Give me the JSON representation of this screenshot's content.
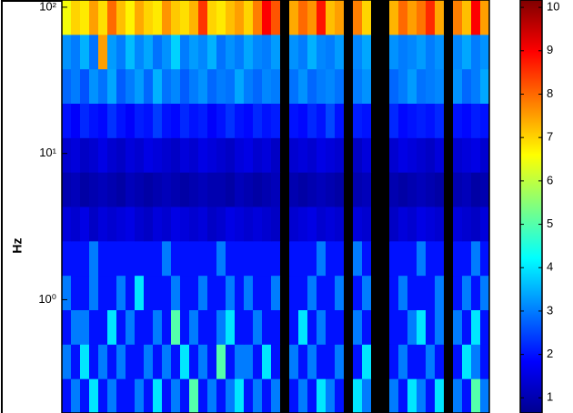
{
  "chart_data": {
    "type": "heatmap",
    "y_label": "Hz",
    "ylog": true,
    "ylim": [
      0.168,
      112
    ],
    "yticks": [
      {
        "value": 1,
        "label": "10⁰"
      },
      {
        "value": 10,
        "label": "10¹"
      },
      {
        "value": 100,
        "label": "10²"
      }
    ],
    "colormap": "jet",
    "clim": [
      0.65,
      10.17
    ],
    "cticks": [
      1,
      2,
      3,
      4,
      5,
      6,
      7,
      8,
      9,
      10
    ],
    "missing_color": "#000000",
    "z": [
      [
        2,
        3,
        2,
        4,
        2,
        3,
        2,
        2,
        3,
        2,
        4,
        2,
        3,
        2,
        5,
        2,
        3,
        2,
        3,
        4,
        2,
        3,
        2,
        3,
        null,
        2,
        3,
        2,
        4,
        3,
        2,
        null,
        4,
        3,
        null,
        null,
        3,
        2,
        4,
        3,
        2,
        4,
        null,
        3,
        2,
        5,
        3
      ],
      [
        3,
        2,
        4,
        2,
        3,
        2,
        3,
        2,
        2,
        3,
        2,
        3,
        2,
        4,
        2,
        3,
        2,
        5,
        2,
        3,
        3,
        2,
        4,
        2,
        null,
        3,
        2,
        3,
        2,
        2,
        3,
        null,
        2,
        4,
        null,
        null,
        2,
        3,
        2,
        2,
        3,
        2,
        null,
        2,
        4,
        3,
        2
      ],
      [
        2,
        3,
        3,
        2,
        2,
        4,
        2,
        3,
        2,
        2,
        3,
        2,
        5,
        2,
        3,
        2,
        2,
        3,
        4,
        2,
        2,
        3,
        2,
        2,
        null,
        2,
        4,
        2,
        3,
        2,
        2,
        null,
        3,
        2,
        null,
        null,
        2,
        2,
        3,
        4,
        2,
        3,
        null,
        3,
        2,
        4,
        2
      ],
      [
        3,
        2,
        2,
        3,
        2,
        2,
        3,
        2,
        4,
        2,
        2,
        2,
        3,
        2,
        2,
        3,
        2,
        2,
        3,
        2,
        3,
        2,
        2,
        3,
        null,
        2,
        2,
        3,
        2,
        2,
        3,
        null,
        2,
        3,
        null,
        null,
        2,
        3,
        2,
        2,
        2,
        3,
        null,
        2,
        3,
        2,
        3
      ],
      [
        2,
        2,
        2,
        3,
        2,
        2,
        2,
        2,
        2,
        2,
        2,
        3,
        2,
        2,
        2,
        2,
        2,
        3,
        2,
        2,
        2,
        2,
        2,
        2,
        null,
        2,
        2,
        2,
        3,
        2,
        2,
        null,
        3,
        2,
        null,
        null,
        2,
        2,
        2,
        3,
        2,
        2,
        null,
        2,
        2,
        3,
        2
      ],
      [
        1.5,
        1.4,
        1.6,
        1.3,
        1.5,
        1.4,
        1.5,
        1.6,
        1.4,
        1.3,
        1.5,
        1.4,
        1.6,
        1.5,
        1.4,
        1.5,
        1.3,
        1.4,
        1.6,
        1.5,
        1.4,
        1.5,
        1.4,
        1.3,
        null,
        1.4,
        1.5,
        1.6,
        1.4,
        1.5,
        1.4,
        null,
        1.5,
        1.4,
        null,
        null,
        1.3,
        1.5,
        1.4,
        1.6,
        1.5,
        1.4,
        null,
        1.5,
        1.4,
        1.3,
        1.5
      ],
      [
        1.1,
        1.2,
        1,
        1.1,
        1.2,
        1.1,
        1,
        1.2,
        1.1,
        1,
        1.1,
        1.2,
        1.1,
        1,
        1.1,
        1.2,
        1.1,
        1.1,
        1,
        1.2,
        1.1,
        1,
        1.1,
        1.2,
        null,
        1.1,
        1,
        1.1,
        1.2,
        1.1,
        1,
        null,
        1.1,
        1.2,
        null,
        null,
        1.1,
        1,
        1.1,
        1.2,
        1.1,
        1,
        null,
        1.1,
        1.2,
        1,
        1.1
      ],
      [
        1.4,
        1.5,
        1.3,
        1.4,
        1.6,
        1.4,
        1.3,
        1.5,
        1.4,
        1.6,
        1.5,
        1.4,
        1.3,
        1.5,
        1.4,
        1.6,
        1.5,
        1.4,
        1.3,
        1.5,
        1.6,
        1.4,
        1.5,
        1.3,
        null,
        1.4,
        1.5,
        1.4,
        1.6,
        1.5,
        1.4,
        null,
        1.3,
        1.5,
        null,
        null,
        1.4,
        1.6,
        1.5,
        1.4,
        1.3,
        1.5,
        null,
        1.4,
        1.5,
        1.6,
        1.4
      ],
      [
        2,
        1.8,
        2.2,
        2,
        1.9,
        2.3,
        2,
        1.8,
        2.1,
        2,
        2.4,
        2,
        1.9,
        2.2,
        2,
        2.1,
        1.8,
        2,
        2.3,
        2,
        1.9,
        2.2,
        2,
        2.1,
        null,
        2,
        1.9,
        2.2,
        2,
        2.5,
        2,
        null,
        2.1,
        2,
        null,
        null,
        2.2,
        1.9,
        2,
        2.1,
        2,
        2.2,
        null,
        2,
        1.9,
        2.1,
        2
      ],
      [
        2.8,
        3,
        2.6,
        3.2,
        2.9,
        3.4,
        2.7,
        3,
        3.3,
        2.8,
        3.5,
        2.9,
        3.1,
        2.7,
        3,
        3.2,
        2.8,
        3,
        2.9,
        3.4,
        3,
        2.8,
        3.1,
        3,
        null,
        2.9,
        3.2,
        2.8,
        3,
        3.1,
        2.9,
        null,
        3,
        3.2,
        null,
        null,
        2.8,
        3,
        3.3,
        2.9,
        3,
        3.1,
        null,
        3.2,
        2.8,
        3,
        3.4
      ],
      [
        3.2,
        3,
        3.5,
        2.9,
        7.5,
        3.3,
        3,
        3.6,
        3.1,
        3.4,
        2.9,
        3.2,
        3.8,
        3,
        3.3,
        3.1,
        3.5,
        2.9,
        3.2,
        3,
        3.4,
        3.1,
        3,
        3.3,
        null,
        3.2,
        3,
        3.5,
        3.1,
        3,
        3.3,
        null,
        3.1,
        3.4,
        null,
        null,
        3.2,
        3,
        3.1,
        3.3,
        3,
        3.2,
        null,
        3.1,
        3.4,
        3,
        3.2
      ],
      [
        6.5,
        7,
        6.8,
        7.5,
        6.9,
        8,
        7.2,
        6.7,
        7.4,
        7,
        6.8,
        7.6,
        7.1,
        6.9,
        7.3,
        8.5,
        7,
        6.8,
        7.2,
        7.5,
        7,
        7.8,
        9,
        8.2,
        null,
        7.4,
        8,
        7.6,
        8.8,
        7.2,
        7.5,
        null,
        7.8,
        7,
        null,
        null,
        7.3,
        8,
        7.5,
        7.9,
        8.6,
        7.4,
        null,
        7.8,
        7.2,
        9,
        7.5
      ]
    ]
  }
}
